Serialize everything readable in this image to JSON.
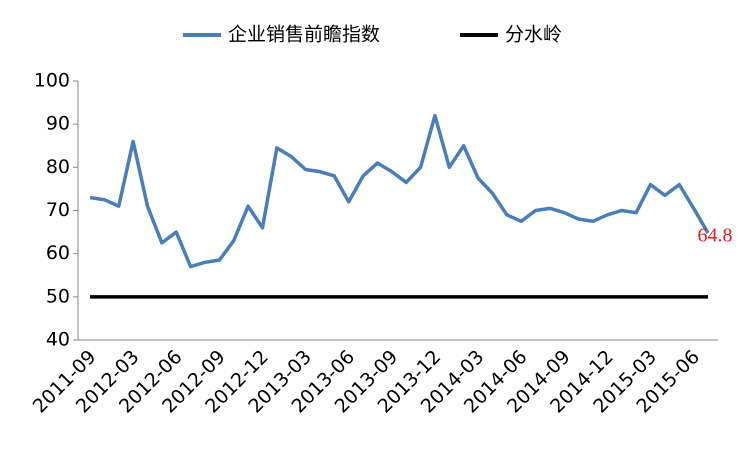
{
  "chart_data": {
    "type": "line",
    "categories": [
      "2011-09",
      null,
      null,
      "2012-03",
      null,
      null,
      "2012-06",
      null,
      null,
      "2012-09",
      null,
      null,
      "2012-12",
      null,
      null,
      "2013-03",
      null,
      null,
      "2013-06",
      null,
      null,
      "2013-09",
      null,
      null,
      "2013-12",
      null,
      null,
      "2014-03",
      null,
      null,
      "2014-06",
      null,
      null,
      "2014-09",
      null,
      null,
      "2014-12",
      null,
      null,
      "2015-03",
      null,
      null,
      "2015-06",
      null
    ],
    "series": [
      {
        "name": "企业销售前瞻指数",
        "color": "#4a7ebb",
        "values": [
          73,
          72.5,
          71,
          86,
          71,
          62.5,
          65,
          57,
          58,
          58.5,
          63,
          71,
          66,
          84.5,
          82.5,
          79.5,
          79,
          78,
          72,
          78,
          81,
          79,
          76.5,
          80,
          92,
          80,
          85,
          77.5,
          74,
          69,
          67.5,
          70,
          70.5,
          69.5,
          68,
          67.5,
          69,
          70,
          69.5,
          76,
          73.5,
          76,
          70.5,
          64.8
        ]
      },
      {
        "name": "分水岭",
        "color": "#000000",
        "values": [
          50,
          50,
          50,
          50,
          50,
          50,
          50,
          50,
          50,
          50,
          50,
          50,
          50,
          50,
          50,
          50,
          50,
          50,
          50,
          50,
          50,
          50,
          50,
          50,
          50,
          50,
          50,
          50,
          50,
          50,
          50,
          50,
          50,
          50,
          50,
          50,
          50,
          50,
          50,
          50,
          50,
          50,
          50,
          50
        ]
      }
    ],
    "ylim": [
      40,
      100
    ],
    "yticks": [
      40,
      50,
      60,
      70,
      80,
      90,
      100
    ],
    "grid": false
  }
}
